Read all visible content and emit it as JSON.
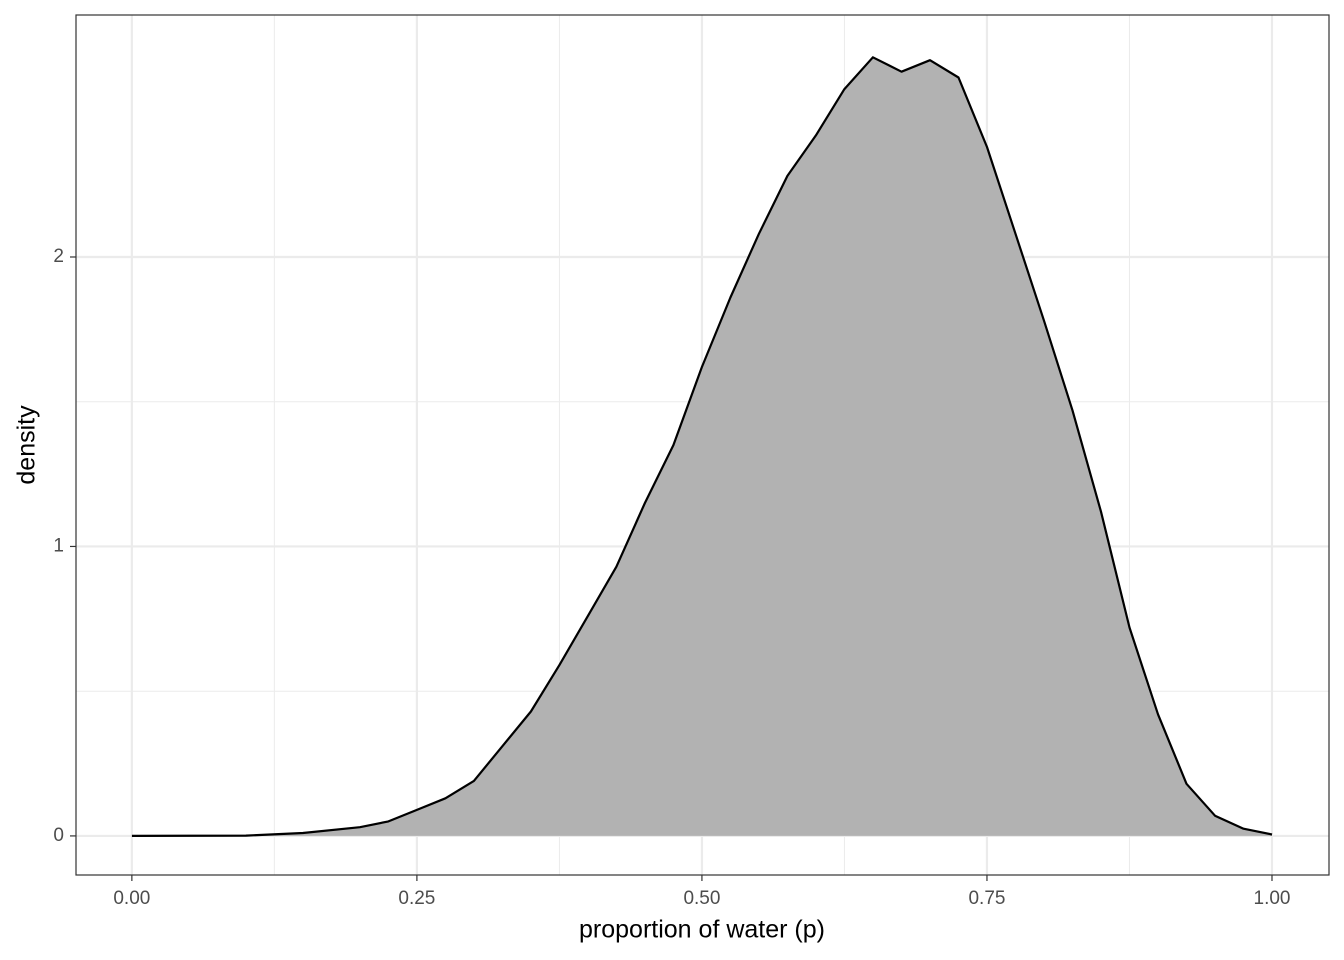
{
  "chart_data": {
    "type": "area",
    "x_label": "proportion of water (p)",
    "y_label": "density",
    "x": [
      0,
      0.1,
      0.15,
      0.2,
      0.225,
      0.25,
      0.275,
      0.3,
      0.325,
      0.35,
      0.375,
      0.4,
      0.425,
      0.45,
      0.475,
      0.5,
      0.525,
      0.55,
      0.575,
      0.6,
      0.625,
      0.65,
      0.675,
      0.7,
      0.725,
      0.75,
      0.775,
      0.8,
      0.825,
      0.85,
      0.875,
      0.9,
      0.925,
      0.95,
      0.975,
      1.0
    ],
    "values": [
      0,
      0.001,
      0.01,
      0.03,
      0.05,
      0.09,
      0.13,
      0.19,
      0.31,
      0.43,
      0.59,
      0.76,
      0.93,
      1.15,
      1.35,
      1.62,
      1.86,
      2.08,
      2.28,
      2.42,
      2.58,
      2.69,
      2.64,
      2.68,
      2.62,
      2.38,
      2.08,
      1.78,
      1.47,
      1.12,
      0.72,
      0.42,
      0.18,
      0.07,
      0.025,
      0.005
    ],
    "color": "#b2b2b2",
    "line_color": "#000000",
    "xlim": [
      -0.049,
      1.05
    ],
    "ylim": [
      -0.135,
      2.836
    ],
    "xticks": [
      {
        "value": 0,
        "label": "0.00"
      },
      0.25,
      {
        "value": 0.5,
        "label": "0.50"
      },
      0.75,
      {
        "value": 1,
        "label": "1.00"
      }
    ],
    "yticks": [
      0,
      1,
      2
    ],
    "grid": true
  }
}
